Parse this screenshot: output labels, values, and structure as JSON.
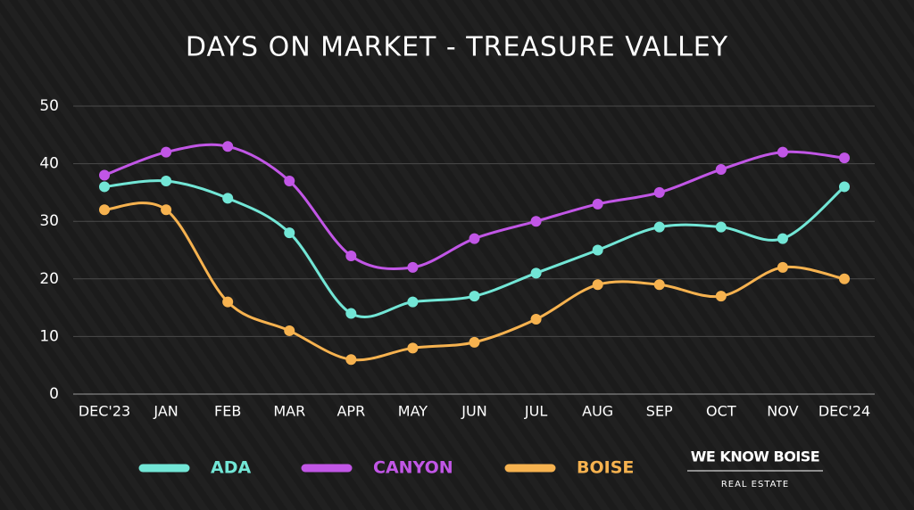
{
  "chart_data": {
    "type": "line",
    "title": "DAYS ON MARKET - TREASURE VALLEY",
    "categories": [
      "DEC'23",
      "JAN",
      "FEB",
      "MAR",
      "APR",
      "MAY",
      "JUN",
      "JUL",
      "AUG",
      "SEP",
      "OCT",
      "NOV",
      "DEC'24"
    ],
    "series": [
      {
        "name": "ADA",
        "color": "#72e6d6",
        "values": [
          36,
          37,
          34,
          28,
          14,
          16,
          17,
          21,
          25,
          29,
          29,
          27,
          36
        ]
      },
      {
        "name": "CANYON",
        "color": "#c156e6",
        "values": [
          38,
          42,
          43,
          37,
          24,
          22,
          27,
          30,
          33,
          35,
          39,
          42,
          41
        ]
      },
      {
        "name": "BOISE",
        "color": "#f6b24f",
        "values": [
          32,
          32,
          16,
          11,
          6,
          8,
          9,
          13,
          19,
          19,
          17,
          22,
          20
        ]
      }
    ],
    "ylim": [
      0,
      50
    ],
    "yticks": [
      0,
      10,
      20,
      30,
      40,
      50
    ],
    "grid": true,
    "smooth": true,
    "legend": "bottom",
    "logo": {
      "name": "WE KNOW BOISE",
      "tagline": "REAL ESTATE"
    }
  }
}
